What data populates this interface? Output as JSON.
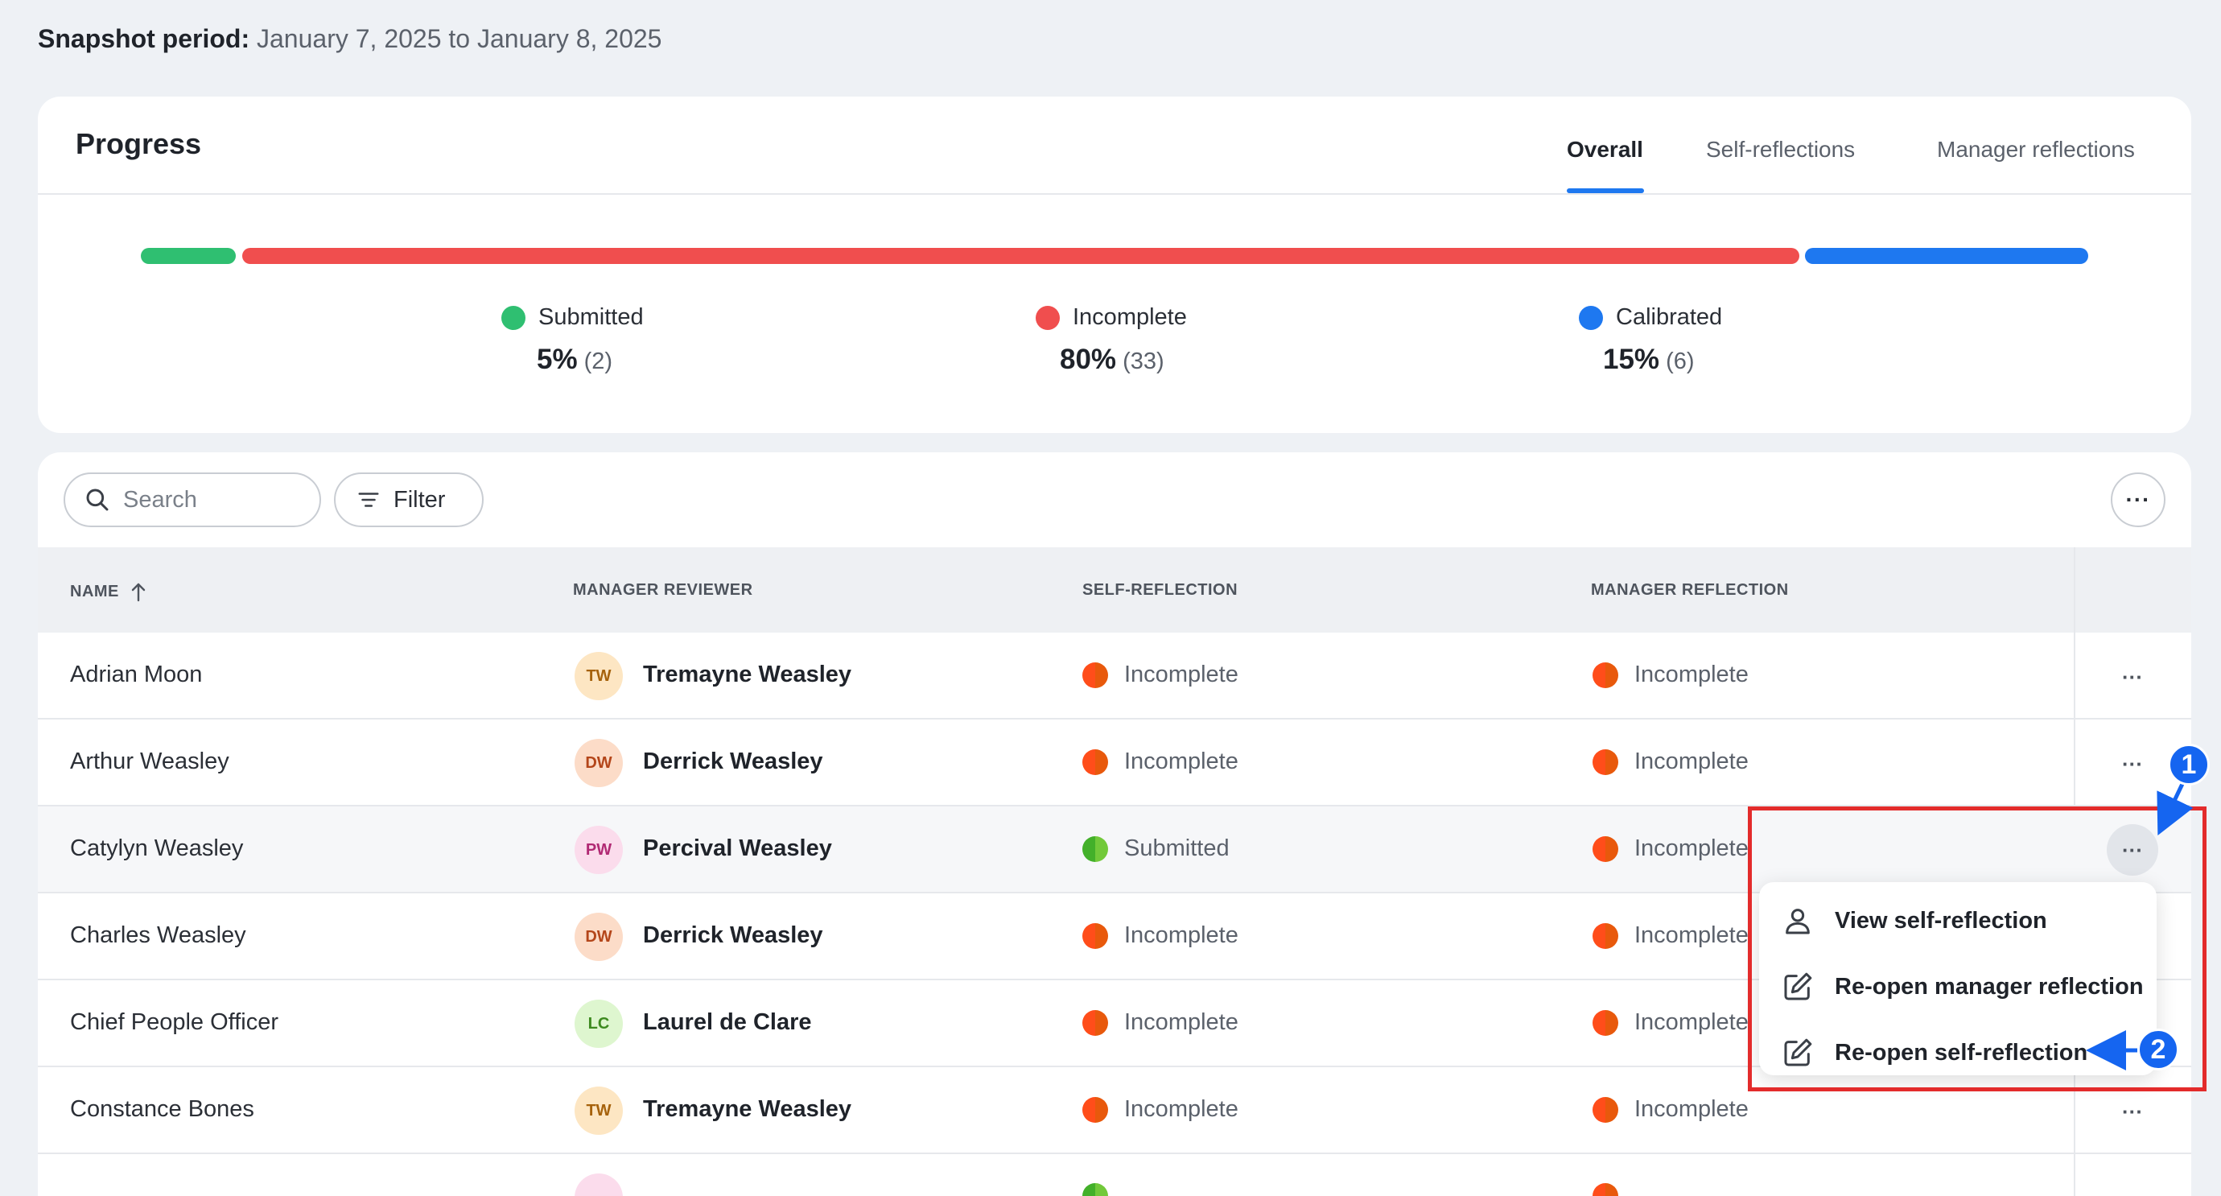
{
  "snapshot": {
    "label": "Snapshot period:",
    "value": "January 7, 2025 to January 8, 2025"
  },
  "progress": {
    "title": "Progress",
    "tabs": [
      {
        "label": "Overall",
        "active": true
      },
      {
        "label": "Self-reflections",
        "active": false
      },
      {
        "label": "Manager reflections",
        "active": false
      }
    ],
    "segments": [
      {
        "label": "Submitted",
        "percent": "5%",
        "count": "(2)",
        "fraction": 0.05,
        "color": "#2fbf71"
      },
      {
        "label": "Incomplete",
        "percent": "80%",
        "count": "(33)",
        "fraction": 0.8,
        "color": "#f04e4e"
      },
      {
        "label": "Calibrated",
        "percent": "15%",
        "count": "(6)",
        "fraction": 0.15,
        "color": "#1e78f0"
      }
    ]
  },
  "toolbar": {
    "search_placeholder": "Search",
    "filter_label": "Filter",
    "more_label": "···"
  },
  "table": {
    "headers": {
      "name": "NAME",
      "manager": "MANAGER REVIEWER",
      "self": "SELF-REFLECTION",
      "manager_reflection": "MANAGER REFLECTION"
    },
    "rows": [
      {
        "name": "Adrian Moon",
        "initials": "TW",
        "manager": "Tremayne Weasley",
        "self": "Incomplete",
        "manager_reflection": "Incomplete"
      },
      {
        "name": "Arthur Weasley",
        "initials": "DW",
        "manager": "Derrick Weasley",
        "self": "Incomplete",
        "manager_reflection": "Incomplete"
      },
      {
        "name": "Catylyn Weasley",
        "initials": "PW",
        "manager": "Percival Weasley",
        "self": "Submitted",
        "manager_reflection": "Incomplete"
      },
      {
        "name": "Charles Weasley",
        "initials": "DW",
        "manager": "Derrick Weasley",
        "self": "Incomplete",
        "manager_reflection": "Incomplete"
      },
      {
        "name": "Chief People Officer",
        "initials": "LC",
        "manager": "Laurel de Clare",
        "self": "Incomplete",
        "manager_reflection": "Incomplete"
      },
      {
        "name": "Constance Bones",
        "initials": "TW",
        "manager": "Tremayne Weasley",
        "self": "Incomplete",
        "manager_reflection": "Incomplete"
      }
    ],
    "row_more_label": "···"
  },
  "menu": {
    "items": [
      {
        "label": "View self-reflection",
        "icon": "person-icon"
      },
      {
        "label": "Re-open manager reflection",
        "icon": "edit-icon"
      },
      {
        "label": "Re-open self-reflection",
        "icon": "edit-icon"
      }
    ]
  },
  "annotations": {
    "badge_1": "1",
    "badge_2": "2",
    "box_color": "#e32b2b",
    "badge_color": "#1565f0"
  }
}
